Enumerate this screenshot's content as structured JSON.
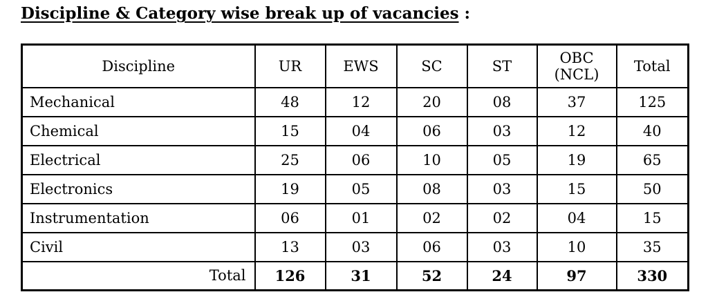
{
  "page": {
    "title": "Discipline & Category wise break up of vacancies",
    "title_suffix": " :"
  },
  "table": {
    "header": {
      "discipline": "Discipline",
      "ur": "UR",
      "ews": "EWS",
      "sc": "SC",
      "st": "ST",
      "obc_line1": "OBC",
      "obc_line2": "(NCL)",
      "total": "Total"
    },
    "rows": [
      {
        "discipline": "Mechanical",
        "ur": "48",
        "ews": "12",
        "sc": "20",
        "st": "08",
        "obc": "37",
        "total": "125"
      },
      {
        "discipline": "Chemical",
        "ur": "15",
        "ews": "04",
        "sc": "06",
        "st": "03",
        "obc": "12",
        "total": "40"
      },
      {
        "discipline": "Electrical",
        "ur": "25",
        "ews": "06",
        "sc": "10",
        "st": "05",
        "obc": "19",
        "total": "65"
      },
      {
        "discipline": "Electronics",
        "ur": "19",
        "ews": "05",
        "sc": "08",
        "st": "03",
        "obc": "15",
        "total": "50"
      },
      {
        "discipline": "Instrumentation",
        "ur": "06",
        "ews": "01",
        "sc": "02",
        "st": "02",
        "obc": "04",
        "total": "15"
      },
      {
        "discipline": "Civil",
        "ur": "13",
        "ews": "03",
        "sc": "06",
        "st": "03",
        "obc": "10",
        "total": "35"
      }
    ],
    "total_row": {
      "label": "Total",
      "ur": "126",
      "ews": "31",
      "sc": "52",
      "st": "24",
      "obc": "97",
      "total": "330"
    }
  },
  "chart_data": {
    "type": "table",
    "title": "Discipline & Category wise break up of vacancies",
    "columns": [
      "Discipline",
      "UR",
      "EWS",
      "SC",
      "ST",
      "OBC (NCL)",
      "Total"
    ],
    "rows": [
      [
        "Mechanical",
        48,
        12,
        20,
        8,
        37,
        125
      ],
      [
        "Chemical",
        15,
        4,
        6,
        3,
        12,
        40
      ],
      [
        "Electrical",
        25,
        6,
        10,
        5,
        19,
        65
      ],
      [
        "Electronics",
        19,
        5,
        8,
        3,
        15,
        50
      ],
      [
        "Instrumentation",
        6,
        1,
        2,
        2,
        4,
        15
      ],
      [
        "Civil",
        13,
        3,
        6,
        3,
        10,
        35
      ],
      [
        "Total",
        126,
        31,
        52,
        24,
        97,
        330
      ]
    ]
  }
}
